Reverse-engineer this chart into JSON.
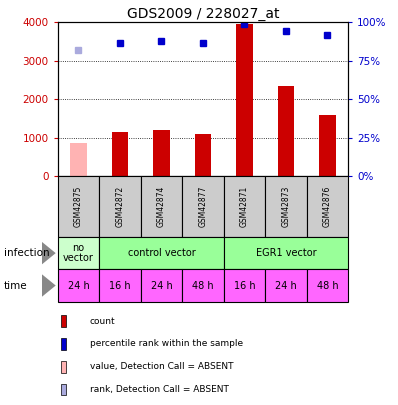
{
  "title": "GDS2009 / 228027_at",
  "samples": [
    "GSM42875",
    "GSM42872",
    "GSM42874",
    "GSM42877",
    "GSM42871",
    "GSM42873",
    "GSM42876"
  ],
  "bar_values": [
    850,
    1150,
    1200,
    1100,
    3950,
    2350,
    1600
  ],
  "bar_colors": [
    "#ffb3b3",
    "#cc0000",
    "#cc0000",
    "#cc0000",
    "#cc0000",
    "#cc0000",
    "#cc0000"
  ],
  "dot_values": [
    3280,
    3460,
    3510,
    3460,
    3960,
    3780,
    3680
  ],
  "dot_colors": [
    "#aaaadd",
    "#0000cc",
    "#0000cc",
    "#0000cc",
    "#0000cc",
    "#0000cc",
    "#0000cc"
  ],
  "ylim_left": [
    0,
    4000
  ],
  "ylim_right": [
    0,
    100
  ],
  "yticks_left": [
    0,
    1000,
    2000,
    3000,
    4000
  ],
  "ytick_labels_left": [
    "0",
    "1000",
    "2000",
    "3000",
    "4000"
  ],
  "yticks_right": [
    0,
    25,
    50,
    75,
    100
  ],
  "ytick_labels_right": [
    "0%",
    "25%",
    "50%",
    "75%",
    "100%"
  ],
  "infection_groups": [
    {
      "label": "no\nvector",
      "start": 0,
      "end": 1,
      "color": "#ccffcc"
    },
    {
      "label": "control vector",
      "start": 1,
      "end": 4,
      "color": "#99ff99"
    },
    {
      "label": "EGR1 vector",
      "start": 4,
      "end": 7,
      "color": "#99ff99"
    }
  ],
  "time_labels": [
    "24 h",
    "16 h",
    "24 h",
    "48 h",
    "16 h",
    "24 h",
    "48 h"
  ],
  "time_color": "#ff66ff",
  "sample_box_color": "#cccccc",
  "legend_items": [
    {
      "color": "#cc0000",
      "label": "count"
    },
    {
      "color": "#0000cc",
      "label": "percentile rank within the sample"
    },
    {
      "color": "#ffb3b3",
      "label": "value, Detection Call = ABSENT"
    },
    {
      "color": "#aaaadd",
      "label": "rank, Detection Call = ABSENT"
    }
  ],
  "left_axis_color": "#cc0000",
  "right_axis_color": "#0000cc",
  "grid_yticks": [
    1000,
    2000,
    3000
  ],
  "bar_width": 0.4
}
